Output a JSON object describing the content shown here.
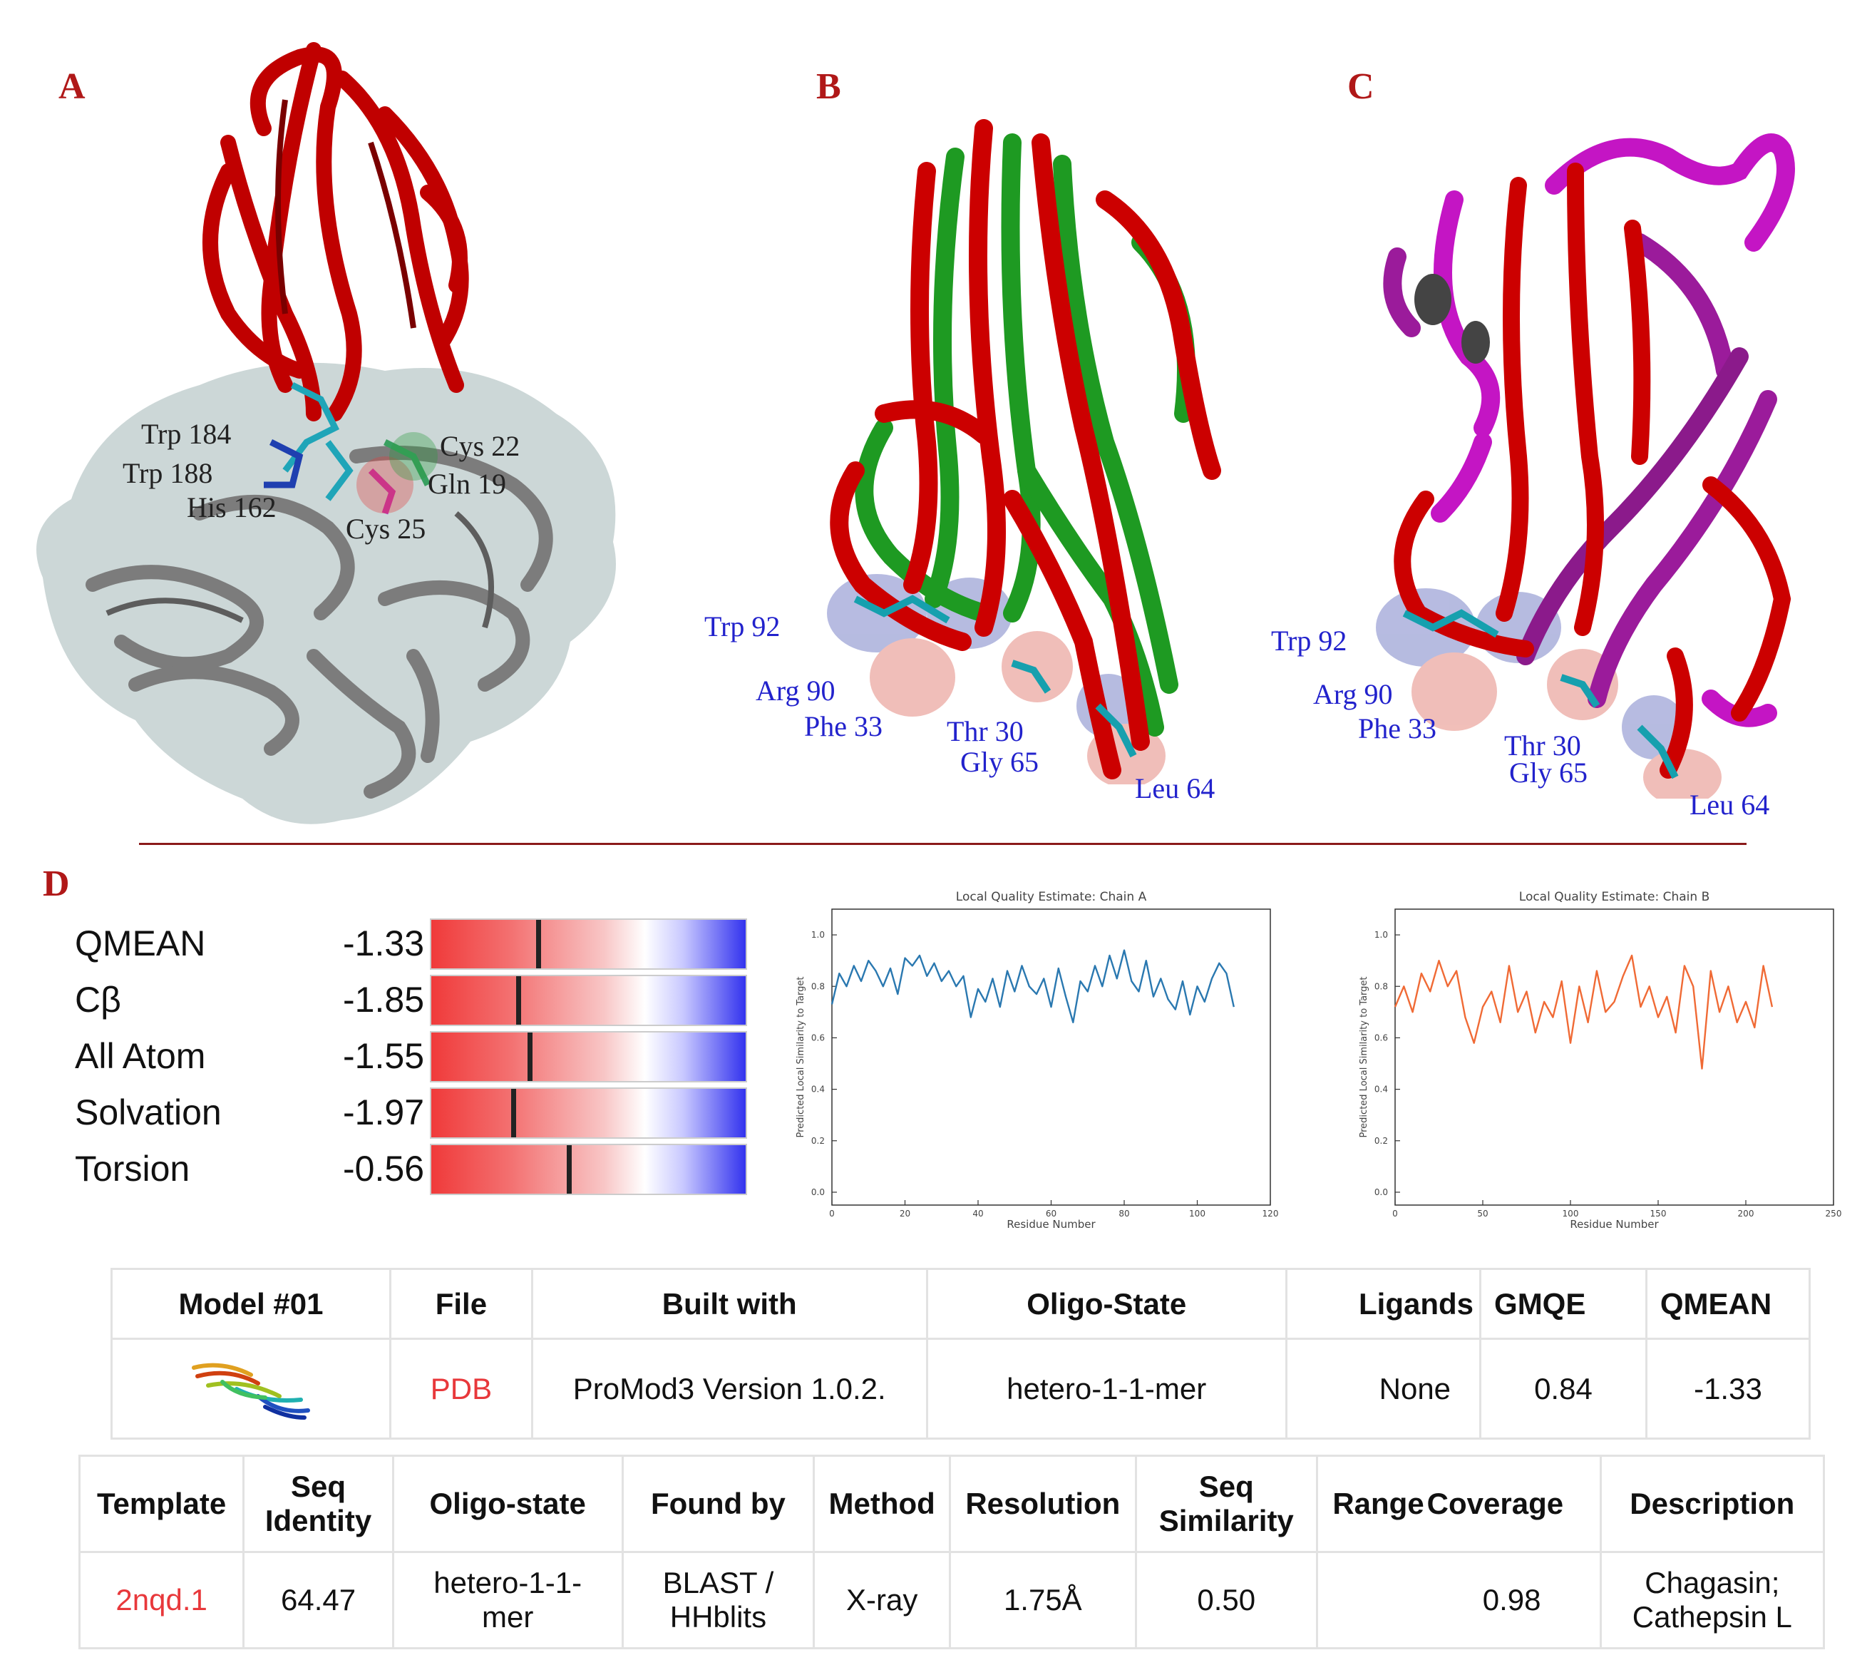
{
  "panels": {
    "a": {
      "letter": "A",
      "labels": [
        "Trp 184",
        "Trp 188",
        "His 162",
        "Cys 22",
        "Gln 19",
        "Cys 25"
      ]
    },
    "b": {
      "letter": "B",
      "labels": [
        "Trp 92",
        "Arg 90",
        "Phe 33",
        "Thr 30",
        "Gly 65",
        "Leu 64"
      ]
    },
    "c": {
      "letter": "C",
      "labels": [
        "Trp 92",
        "Arg 90",
        "Phe 33",
        "Thr 30",
        "Gly 65",
        "Leu 64"
      ]
    },
    "d": {
      "letter": "D"
    }
  },
  "qmean_scores": [
    {
      "name": "QMEAN",
      "value": "-1.33",
      "z": -1.33
    },
    {
      "name": "Cβ",
      "value": "-1.85",
      "z": -1.85
    },
    {
      "name": "All Atom",
      "value": "-1.55",
      "z": -1.55
    },
    {
      "name": "Solvation",
      "value": "-1.97",
      "z": -1.97
    },
    {
      "name": "Torsion",
      "value": "-0.56",
      "z": -0.56
    }
  ],
  "chart_data": [
    {
      "type": "line",
      "title": "Local Quality Estimate: Chain A",
      "xlabel": "Residue Number",
      "ylabel": "Predicted Local Similarity to Target",
      "xlim": [
        0,
        120
      ],
      "ylim": [
        -0.05,
        1.1
      ],
      "xticks": [
        0,
        20,
        40,
        60,
        80,
        100,
        120
      ],
      "yticks": [
        0.0,
        0.2,
        0.4,
        0.6,
        0.8,
        1.0
      ],
      "color": "#2a78b0",
      "series": [
        {
          "x": [
            0,
            2,
            4,
            6,
            8,
            10,
            12,
            14,
            16,
            18,
            20,
            22,
            24,
            26,
            28,
            30,
            32,
            34,
            36,
            38,
            40,
            42,
            44,
            46,
            48,
            50,
            52,
            54,
            56,
            58,
            60,
            62,
            64,
            66,
            68,
            70,
            72,
            74,
            76,
            78,
            80,
            82,
            84,
            86,
            88,
            90,
            92,
            94,
            96,
            98,
            100,
            102,
            104,
            106,
            108,
            110
          ],
          "y": [
            0.73,
            0.85,
            0.8,
            0.88,
            0.82,
            0.9,
            0.86,
            0.8,
            0.87,
            0.77,
            0.91,
            0.88,
            0.92,
            0.84,
            0.89,
            0.82,
            0.86,
            0.8,
            0.84,
            0.68,
            0.79,
            0.74,
            0.83,
            0.72,
            0.86,
            0.78,
            0.88,
            0.8,
            0.77,
            0.83,
            0.72,
            0.87,
            0.76,
            0.66,
            0.82,
            0.78,
            0.88,
            0.8,
            0.92,
            0.83,
            0.94,
            0.82,
            0.78,
            0.9,
            0.76,
            0.83,
            0.75,
            0.71,
            0.82,
            0.69,
            0.8,
            0.74,
            0.83,
            0.89,
            0.85,
            0.72
          ]
        }
      ]
    },
    {
      "type": "line",
      "title": "Local Quality Estimate: Chain B",
      "xlabel": "Residue Number",
      "ylabel": "Predicted Local Similarity to Target",
      "xlim": [
        0,
        250
      ],
      "ylim": [
        -0.05,
        1.1
      ],
      "xticks": [
        0,
        50,
        100,
        150,
        200,
        250
      ],
      "yticks": [
        0.0,
        0.2,
        0.4,
        0.6,
        0.8,
        1.0
      ],
      "color": "#f06a35",
      "series": [
        {
          "x": [
            0,
            5,
            10,
            15,
            20,
            25,
            30,
            35,
            40,
            45,
            50,
            55,
            60,
            65,
            70,
            75,
            80,
            85,
            90,
            95,
            100,
            105,
            110,
            115,
            120,
            125,
            130,
            135,
            140,
            145,
            150,
            155,
            160,
            165,
            170,
            175,
            180,
            185,
            190,
            195,
            200,
            205,
            210,
            215
          ],
          "y": [
            0.72,
            0.8,
            0.7,
            0.85,
            0.78,
            0.9,
            0.8,
            0.86,
            0.68,
            0.58,
            0.72,
            0.78,
            0.66,
            0.88,
            0.7,
            0.78,
            0.62,
            0.74,
            0.68,
            0.82,
            0.58,
            0.8,
            0.66,
            0.86,
            0.7,
            0.74,
            0.84,
            0.92,
            0.72,
            0.8,
            0.68,
            0.76,
            0.62,
            0.88,
            0.8,
            0.48,
            0.86,
            0.7,
            0.8,
            0.66,
            0.74,
            0.64,
            0.88,
            0.72
          ]
        }
      ]
    }
  ],
  "model_table": {
    "headers": [
      "Model #01",
      "File",
      "Built with",
      "Oligo-State",
      "Ligands",
      "GMQE",
      "QMEAN"
    ],
    "row": [
      "PDB",
      "ProMod3 Version 1.0.2.",
      "hetero-1-1-mer",
      "None",
      "0.84",
      "-1.33"
    ]
  },
  "template_table": {
    "headers": [
      "Template",
      "Seq Identity",
      "Oligo-state",
      "Found by",
      "Method",
      "Resolution",
      "Seq Similarity",
      "Range",
      "Coverage",
      "Description"
    ],
    "row": [
      "2nqd.1",
      "64.47",
      "hetero-1-1-mer",
      "BLAST / HHblits",
      "X-ray",
      "1.75Å",
      "0.50",
      "",
      "0.98",
      "Chagasin; Cathepsin L"
    ]
  },
  "colors": {
    "panel_letter": "#b01818",
    "residue_label": "#2222cc",
    "link_red": "#e8383b",
    "divider": "#8a1a1a"
  }
}
